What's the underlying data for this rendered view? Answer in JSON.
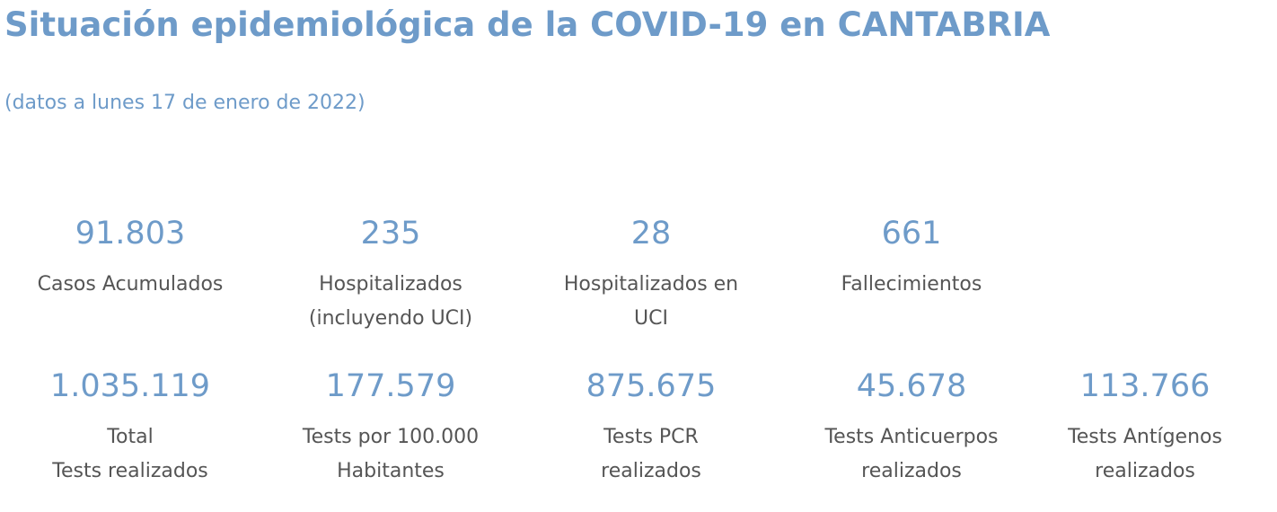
{
  "page": {
    "title": "Situación epidemiológica de la COVID-19 en CANTABRIA",
    "subtitle": "(datos a lunes 17 de enero de 2022)"
  },
  "colors": {
    "accent": "#6e9bc9",
    "label_text": "#555555",
    "background": "#ffffff"
  },
  "stats_row_1": [
    {
      "value": "91.803",
      "label": "Casos Acumulados"
    },
    {
      "value": "235",
      "label": "Hospitalizados\n(incluyendo UCI)"
    },
    {
      "value": "28",
      "label": "Hospitalizados en\nUCI"
    },
    {
      "value": "661",
      "label": "Fallecimientos"
    }
  ],
  "stats_row_2": [
    {
      "value": "1.035.119",
      "label": "Total\nTests realizados"
    },
    {
      "value": "177.579",
      "label": "Tests por 100.000\nHabitantes"
    },
    {
      "value": "875.675",
      "label": "Tests PCR\nrealizados"
    },
    {
      "value": "45.678",
      "label": "Tests Anticuerpos\nrealizados"
    },
    {
      "value": "113.766",
      "label": "Tests Antígenos\nrealizados"
    }
  ]
}
